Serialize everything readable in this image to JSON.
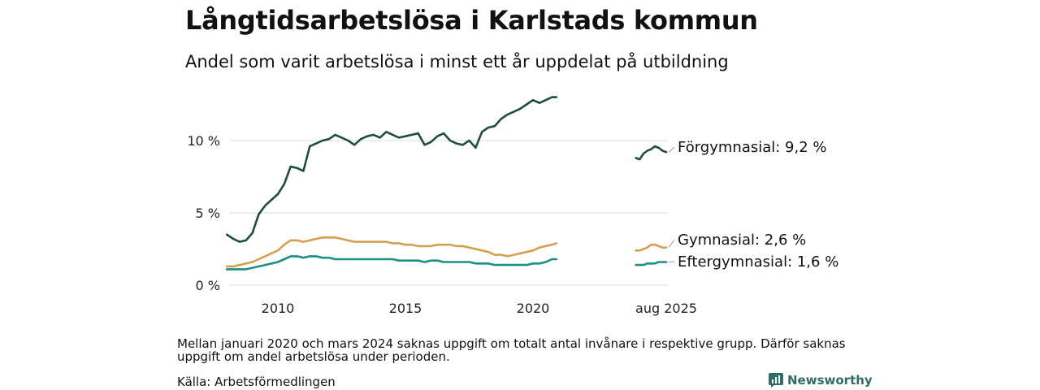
{
  "header": {
    "title": "Långtidsarbetslösa i Karlstads kommun",
    "subtitle": "Andel som varit arbetslösa i minst ett år uppdelat på utbildning"
  },
  "footer": {
    "note": "Mellan januari 2020 och mars 2024 saknas uppgift om totalt antal invånare i respektive grupp. Därför saknas uppgift om andel arbetslösa under perioden.",
    "source": "Källa: Arbetsförmedlingen",
    "brand": "Newsworthy",
    "brand_color": "#2e6e66"
  },
  "chart_data": {
    "type": "line",
    "title": "Långtidsarbetslösa i Karlstads kommun",
    "subtitle": "Andel som varit arbetslösa i minst ett år uppdelat på utbildning",
    "ylim": [
      0,
      13
    ],
    "yticks": [
      0,
      5,
      10
    ],
    "ytick_labels": [
      "0 %",
      "5 %",
      "10 %"
    ],
    "xticks": [
      {
        "x": "2010-01",
        "label": "2010"
      },
      {
        "x": "2015-01",
        "label": "2015"
      },
      {
        "x": "2020-01",
        "label": "2020"
      },
      {
        "x": "2025-08",
        "label": "aug 2025"
      }
    ],
    "grid": true,
    "legend": "direct labels at line ends",
    "series": [
      {
        "name": "Förgymnasial",
        "end_label": "Förgymnasial: 9,2 %",
        "color": "#1f4d43",
        "segments": [
          {
            "x": [
              "2008-01",
              "2008-04",
              "2008-07",
              "2008-10",
              "2009-01",
              "2009-04",
              "2009-07",
              "2009-10",
              "2010-01",
              "2010-04",
              "2010-07",
              "2010-10",
              "2011-01",
              "2011-04",
              "2011-07",
              "2011-10",
              "2012-01",
              "2012-04",
              "2012-07",
              "2012-10",
              "2013-01",
              "2013-04",
              "2013-07",
              "2013-10",
              "2014-01",
              "2014-04",
              "2014-07",
              "2014-10",
              "2015-01",
              "2015-04",
              "2015-07",
              "2015-10",
              "2016-01",
              "2016-04",
              "2016-07",
              "2016-10",
              "2017-01",
              "2017-04",
              "2017-07",
              "2017-10",
              "2018-01",
              "2018-04",
              "2018-07",
              "2018-10",
              "2019-01",
              "2019-04",
              "2019-07",
              "2019-10",
              "2020-01",
              "2020-04",
              "2020-07",
              "2020-10",
              "2020-12"
            ],
            "values": [
              3.5,
              3.2,
              3.0,
              3.1,
              3.6,
              4.9,
              5.5,
              5.9,
              6.3,
              7.0,
              8.2,
              8.1,
              7.9,
              9.6,
              9.8,
              10.0,
              10.1,
              10.4,
              10.2,
              10.0,
              9.7,
              10.1,
              10.3,
              10.4,
              10.2,
              10.6,
              10.4,
              10.2,
              10.3,
              10.4,
              10.5,
              9.7,
              9.9,
              10.3,
              10.5,
              10.0,
              9.8,
              9.7,
              10.0,
              9.5,
              10.6,
              10.9,
              11.0,
              11.5,
              11.8,
              12.0,
              12.2,
              12.5,
              12.8,
              12.6,
              12.8,
              13.0,
              13.0
            ]
          },
          {
            "x": [
              "2024-04",
              "2024-06",
              "2024-08",
              "2024-10",
              "2024-12",
              "2025-02",
              "2025-04",
              "2025-06",
              "2025-08"
            ],
            "values": [
              8.8,
              8.7,
              9.1,
              9.3,
              9.4,
              9.6,
              9.5,
              9.3,
              9.2
            ]
          }
        ]
      },
      {
        "name": "Gymnasial",
        "end_label": "Gymnasial: 2,6 %",
        "color": "#d4a04f",
        "segments": [
          {
            "x": [
              "2008-01",
              "2008-04",
              "2008-07",
              "2008-10",
              "2009-01",
              "2009-04",
              "2009-07",
              "2009-10",
              "2010-01",
              "2010-04",
              "2010-07",
              "2010-10",
              "2011-01",
              "2011-04",
              "2011-07",
              "2011-10",
              "2012-01",
              "2012-04",
              "2012-07",
              "2012-10",
              "2013-01",
              "2013-04",
              "2013-07",
              "2013-10",
              "2014-01",
              "2014-04",
              "2014-07",
              "2014-10",
              "2015-01",
              "2015-04",
              "2015-07",
              "2015-10",
              "2016-01",
              "2016-04",
              "2016-07",
              "2016-10",
              "2017-01",
              "2017-04",
              "2017-07",
              "2017-10",
              "2018-01",
              "2018-04",
              "2018-07",
              "2018-10",
              "2019-01",
              "2019-04",
              "2019-07",
              "2019-10",
              "2020-01",
              "2020-04",
              "2020-07",
              "2020-10",
              "2020-12"
            ],
            "values": [
              1.3,
              1.3,
              1.4,
              1.5,
              1.6,
              1.8,
              2.0,
              2.2,
              2.4,
              2.8,
              3.1,
              3.1,
              3.0,
              3.1,
              3.2,
              3.3,
              3.3,
              3.3,
              3.2,
              3.1,
              3.0,
              3.0,
              3.0,
              3.0,
              3.0,
              3.0,
              2.9,
              2.9,
              2.8,
              2.8,
              2.7,
              2.7,
              2.7,
              2.8,
              2.8,
              2.8,
              2.7,
              2.7,
              2.6,
              2.5,
              2.4,
              2.3,
              2.1,
              2.1,
              2.0,
              2.1,
              2.2,
              2.3,
              2.4,
              2.6,
              2.7,
              2.8,
              2.9
            ]
          },
          {
            "x": [
              "2024-04",
              "2024-06",
              "2024-08",
              "2024-10",
              "2024-12",
              "2025-02",
              "2025-04",
              "2025-06",
              "2025-08"
            ],
            "values": [
              2.4,
              2.4,
              2.5,
              2.6,
              2.8,
              2.8,
              2.7,
              2.6,
              2.6
            ]
          }
        ]
      },
      {
        "name": "Eftergymnasial",
        "end_label": "Eftergymnasial: 1,6 %",
        "color": "#1a9182",
        "segments": [
          {
            "x": [
              "2008-01",
              "2008-04",
              "2008-07",
              "2008-10",
              "2009-01",
              "2009-04",
              "2009-07",
              "2009-10",
              "2010-01",
              "2010-04",
              "2010-07",
              "2010-10",
              "2011-01",
              "2011-04",
              "2011-07",
              "2011-10",
              "2012-01",
              "2012-04",
              "2012-07",
              "2012-10",
              "2013-01",
              "2013-04",
              "2013-07",
              "2013-10",
              "2014-01",
              "2014-04",
              "2014-07",
              "2014-10",
              "2015-01",
              "2015-04",
              "2015-07",
              "2015-10",
              "2016-01",
              "2016-04",
              "2016-07",
              "2016-10",
              "2017-01",
              "2017-04",
              "2017-07",
              "2017-10",
              "2018-01",
              "2018-04",
              "2018-07",
              "2018-10",
              "2019-01",
              "2019-04",
              "2019-07",
              "2019-10",
              "2020-01",
              "2020-04",
              "2020-07",
              "2020-10",
              "2020-12"
            ],
            "values": [
              1.1,
              1.1,
              1.1,
              1.1,
              1.2,
              1.3,
              1.4,
              1.5,
              1.6,
              1.8,
              2.0,
              2.0,
              1.9,
              2.0,
              2.0,
              1.9,
              1.9,
              1.8,
              1.8,
              1.8,
              1.8,
              1.8,
              1.8,
              1.8,
              1.8,
              1.8,
              1.8,
              1.7,
              1.7,
              1.7,
              1.7,
              1.6,
              1.7,
              1.7,
              1.6,
              1.6,
              1.6,
              1.6,
              1.6,
              1.5,
              1.5,
              1.5,
              1.4,
              1.4,
              1.4,
              1.4,
              1.4,
              1.4,
              1.5,
              1.5,
              1.6,
              1.8,
              1.8
            ]
          },
          {
            "x": [
              "2024-04",
              "2024-06",
              "2024-08",
              "2024-10",
              "2024-12",
              "2025-02",
              "2025-04",
              "2025-06",
              "2025-08"
            ],
            "values": [
              1.4,
              1.4,
              1.4,
              1.5,
              1.5,
              1.5,
              1.6,
              1.6,
              1.6
            ]
          }
        ]
      }
    ]
  }
}
